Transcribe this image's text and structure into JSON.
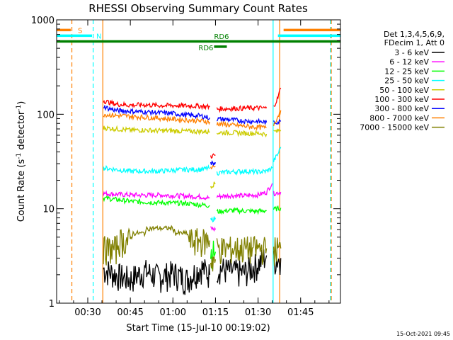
{
  "chart_data": {
    "type": "line",
    "title": "RHESSI Observing Summary Count Rates",
    "xlabel": "Start Time (15-Jul-10 00:19:02)",
    "ylabel_main": "Count Rate (s",
    "ylabel_sup1": "-1",
    "ylabel_mid": " detector",
    "ylabel_sup2": "-1",
    "ylabel_end": ")",
    "yscale": "log",
    "ylim": [
      1,
      1000
    ],
    "xlim_minutes": [
      19.03,
      119.03
    ],
    "x_ticks": [
      {
        "minute": 30,
        "label": "00:30"
      },
      {
        "minute": 45,
        "label": "00:45"
      },
      {
        "minute": 60,
        "label": "01:00"
      },
      {
        "minute": 75,
        "label": "01:15"
      },
      {
        "minute": 90,
        "label": "01:30"
      },
      {
        "minute": 105,
        "label": "01:45"
      }
    ],
    "y_ticks": [
      {
        "value": 1,
        "label": "1"
      },
      {
        "value": 10,
        "label": "10"
      },
      {
        "value": 100,
        "label": "100"
      },
      {
        "value": 1000,
        "label": "1000"
      }
    ],
    "legend_header": [
      "Det 1,3,4,5,6,9,",
      "FDecim 1, Att 0"
    ],
    "legend_position": "right",
    "series": [
      {
        "name": "3 - 6 keV",
        "color": "#000000",
        "segments": [
          {
            "x": [
              35.5,
              40,
              45,
              50,
              55,
              60,
              65,
              70,
              73
            ],
            "y": [
              2.3,
              2.0,
              1.8,
              2.2,
              1.9,
              2.1,
              1.8,
              2.4,
              2.0
            ]
          },
          {
            "x": [
              75.5,
              80,
              85,
              90,
              93
            ],
            "y": [
              2.4,
              2.2,
              2.1,
              2.6,
              3.2
            ]
          },
          {
            "x": [
              95.5,
              98
            ],
            "y": [
              2.8,
              3.0
            ]
          }
        ]
      },
      {
        "name": "6 - 12 keV",
        "color": "#ff00ff",
        "segments": [
          {
            "x": [
              35.5,
              40,
              45,
              50,
              55,
              60,
              65,
              70,
              73
            ],
            "y": [
              14.5,
              14.2,
              14.0,
              13.9,
              14.0,
              13.8,
              13.6,
              13.4,
              13.0
            ]
          },
          {
            "x": [
              73.3,
              75
            ],
            "y": [
              6.2,
              6.0
            ]
          },
          {
            "x": [
              75.5,
              80,
              85,
              90,
              93,
              95
            ],
            "y": [
              13.5,
              13.8,
              13.7,
              14.0,
              15.0,
              18.5
            ]
          },
          {
            "x": [
              95.5,
              98
            ],
            "y": [
              14.5,
              15.0
            ]
          }
        ]
      },
      {
        "name": "12 - 25 keV",
        "color": "#00ff00",
        "segments": [
          {
            "x": [
              35.5,
              40,
              45,
              50,
              55,
              60,
              65,
              70,
              73
            ],
            "y": [
              13.0,
              12.5,
              12.0,
              11.8,
              11.6,
              11.5,
              11.4,
              11.0,
              10.8
            ]
          },
          {
            "x": [
              73.3,
              75
            ],
            "y": [
              3.5,
              3.5
            ]
          },
          {
            "x": [
              75.5,
              80,
              85,
              90,
              93
            ],
            "y": [
              9.3,
              9.6,
              9.5,
              9.4,
              9.6
            ]
          },
          {
            "x": [
              95.5,
              98
            ],
            "y": [
              9.8,
              10.2
            ]
          }
        ]
      },
      {
        "name": "25 - 50 keV",
        "color": "#00ffff",
        "segments": [
          {
            "x": [
              35.5,
              40,
              45,
              50,
              55,
              60,
              65,
              70,
              73
            ],
            "y": [
              27,
              26,
              25,
              25,
              25,
              25.5,
              26,
              26,
              27
            ]
          },
          {
            "x": [
              73.3,
              75
            ],
            "y": [
              7.5,
              8.0
            ]
          },
          {
            "x": [
              75.5,
              80,
              85,
              90,
              93,
              95
            ],
            "y": [
              24,
              24.5,
              25,
              24.5,
              25,
              27
            ]
          },
          {
            "x": [
              95.5,
              97,
              98
            ],
            "y": [
              32,
              38,
              45
            ]
          }
        ]
      },
      {
        "name": "50 - 100 keV",
        "color": "#cccc00",
        "segments": [
          {
            "x": [
              35.5,
              40,
              45,
              50,
              55,
              60,
              65,
              70,
              73
            ],
            "y": [
              72,
              70,
              68,
              68,
              67,
              67,
              66,
              66,
              65
            ]
          },
          {
            "x": [
              73.3,
              75
            ],
            "y": [
              17.5,
              18.5
            ]
          },
          {
            "x": [
              75.5,
              80,
              85,
              90,
              93
            ],
            "y": [
              64,
              64,
              63,
              63,
              62
            ]
          },
          {
            "x": [
              95.5,
              98
            ],
            "y": [
              65,
              68
            ]
          }
        ]
      },
      {
        "name": "100 - 300 keV",
        "color": "#ff0000",
        "segments": [
          {
            "x": [
              35.5,
              37,
              40,
              45,
              50,
              55,
              60,
              65,
              70,
              73
            ],
            "y": [
              140,
              135,
              128,
              125,
              126,
              124,
              124,
              123,
              122,
              120
            ]
          },
          {
            "x": [
              73.3,
              75
            ],
            "y": [
              36,
              37
            ]
          },
          {
            "x": [
              75.5,
              80,
              85,
              90,
              93
            ],
            "y": [
              114,
              115,
              116,
              117,
              116
            ]
          },
          {
            "x": [
              95.5,
              97,
              98
            ],
            "y": [
              120,
              150,
              190
            ]
          }
        ]
      },
      {
        "name": "300 - 800 keV",
        "color": "#0000ff",
        "segments": [
          {
            "x": [
              35.5,
              37,
              40,
              45,
              50,
              55,
              60,
              65,
              70,
              73
            ],
            "y": [
              122,
              116,
              110,
              108,
              106,
              104,
              102,
              98,
              96,
              92
            ]
          },
          {
            "x": [
              73.3,
              75
            ],
            "y": [
              30,
              31
            ]
          },
          {
            "x": [
              75.5,
              80,
              85,
              90,
              93
            ],
            "y": [
              89,
              88,
              85,
              84,
              82
            ]
          },
          {
            "x": [
              95.5,
              98
            ],
            "y": [
              82,
              84
            ]
          }
        ]
      },
      {
        "name": "800 - 7000 keV",
        "color": "#ff8000",
        "segments": [
          {
            "x": [
              35.5,
              40,
              45,
              50,
              55,
              60,
              65,
              70,
              73
            ],
            "y": [
              100,
              97,
              95,
              93,
              91,
              89,
              87,
              85,
              83
            ]
          },
          {
            "x": [
              73.3,
              75
            ],
            "y": [
              27,
              28
            ]
          },
          {
            "x": [
              75.5,
              80,
              85,
              90,
              93
            ],
            "y": [
              80,
              77,
              75,
              73,
              72
            ]
          },
          {
            "x": [
              95.5,
              97,
              98
            ],
            "y": [
              78,
              95,
              110
            ]
          }
        ]
      },
      {
        "name": "7000 - 15000 keV",
        "color": "#808000",
        "segments": [
          {
            "x": [
              35.5,
              40,
              41,
              45,
              46,
              50,
              51,
              60,
              61,
              65,
              66,
              73
            ],
            "y": [
              3.8,
              3.8,
              4.6,
              4.6,
              5.5,
              5.5,
              6.2,
              6.2,
              5.5,
              5.5,
              4.6,
              4.6
            ]
          },
          {
            "x": [
              73.3,
              75
            ],
            "y": [
              2.9,
              2.9
            ]
          },
          {
            "x": [
              75.5,
              93
            ],
            "y": [
              3.8,
              3.8
            ]
          },
          {
            "x": [
              95.5,
              98
            ],
            "y": [
              3.8,
              3.8
            ]
          }
        ]
      }
    ],
    "state_bars": [
      {
        "label": "S",
        "color": "#ff8000",
        "y_value": 780,
        "x_start": 19.03,
        "x_end": 24.0,
        "label_at": 26.5
      },
      {
        "label": "N",
        "color": "#00ffff",
        "y_value": 680,
        "x_start": 19.03,
        "x_end": 31.5,
        "label_at": 33.0
      },
      {
        "label": "",
        "color": "#ff8000",
        "y_value": 780,
        "x_start": 99.0,
        "x_end": 119.03
      },
      {
        "label": "",
        "color": "#00ffff",
        "y_value": 680,
        "x_start": 97.0,
        "x_end": 119.03
      },
      {
        "label": "RD6",
        "color": "#008000",
        "y_value": 590,
        "x_start": 19.03,
        "x_end": 119.03,
        "label_at": 74.5,
        "label_y": 625
      },
      {
        "label": "RD6",
        "color": "#008000",
        "y_value": 520,
        "x_start": 74.5,
        "x_end": 79.0,
        "label_at": 69.0,
        "label_y": 475
      }
    ],
    "vertical_markers": [
      {
        "minute": 24.4,
        "color": "#ff8000",
        "style": "dashed"
      },
      {
        "minute": 31.9,
        "color": "#00ffff",
        "style": "dashed"
      },
      {
        "minute": 35.3,
        "color": "#ff8000",
        "style": "solid"
      },
      {
        "minute": 95.3,
        "color": "#00ffff",
        "style": "solid"
      },
      {
        "minute": 97.6,
        "color": "#ff8000",
        "style": "solid"
      },
      {
        "minute": 115.5,
        "color": "#00ffff",
        "style": "dashed"
      },
      {
        "minute": 115.8,
        "color": "#ff8000",
        "style": "dashed"
      }
    ],
    "timestamp": "15-Oct-2021 09:45"
  }
}
